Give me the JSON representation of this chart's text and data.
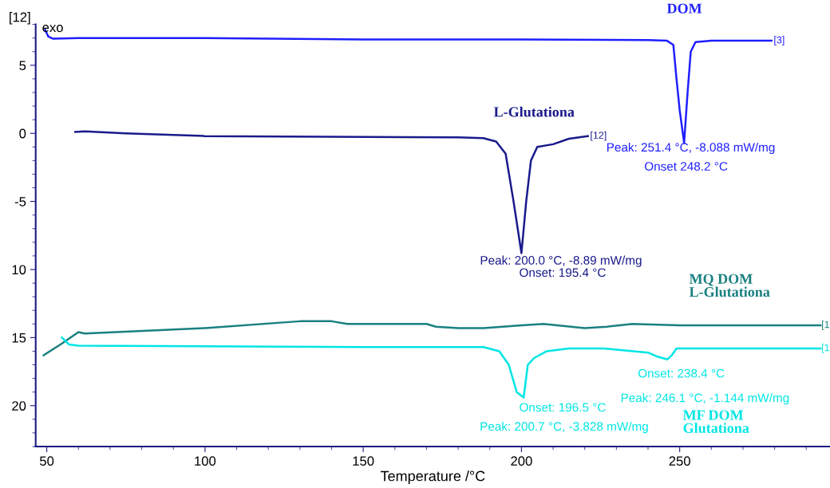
{
  "chart_data": {
    "type": "line",
    "xlabel": "Temperature /°C",
    "xlim": [
      46.5,
      297.5
    ],
    "ylim": [
      -23,
      8
    ],
    "xticks": [
      50,
      100,
      150,
      200,
      250
    ],
    "yticks": [
      {
        "value": -20,
        "label": "20"
      },
      {
        "value": -15,
        "label": "15"
      },
      {
        "value": -10,
        "label": "10"
      },
      -5,
      0,
      5
    ],
    "grid": false,
    "legend": false,
    "marker": "none",
    "line_style": "solid",
    "series": [
      {
        "name": "DOM",
        "color": "#1f1fff",
        "x": [
          49.5,
          50.5,
          52,
          60,
          100,
          150,
          200,
          240,
          246,
          248,
          249,
          250,
          251.4,
          252.5,
          253.5,
          255,
          260,
          279
        ],
        "values": [
          7.6,
          7.1,
          6.95,
          7.0,
          7.0,
          6.9,
          6.9,
          6.85,
          6.8,
          6.5,
          4,
          1.7,
          -0.7,
          3,
          6.0,
          6.7,
          6.8,
          6.8
        ]
      },
      {
        "name": "L-Glutationa",
        "color": "#1a1a8c",
        "x": [
          59,
          62,
          75,
          100,
          180,
          188,
          192,
          195,
          197.5,
          200,
          201.5,
          203,
          205,
          210,
          215,
          221
        ],
        "values": [
          0.1,
          0.15,
          0,
          -0.2,
          -0.3,
          -0.35,
          -0.6,
          -1.5,
          -5,
          -8.8,
          -5,
          -2,
          -1,
          -0.8,
          -0.4,
          -0.2
        ]
      },
      {
        "name": "MQ DOM\nL-Glutationa",
        "color": "#1a8080",
        "x": [
          49,
          55,
          60,
          62,
          100,
          130,
          140,
          145,
          170,
          173,
          180,
          188,
          200,
          207,
          220,
          227,
          235,
          250,
          265,
          294.5
        ],
        "values": [
          -16.3,
          -15.4,
          -14.6,
          -14.7,
          -14.3,
          -13.8,
          -13.8,
          -14.0,
          -14.0,
          -14.2,
          -14.3,
          -14.3,
          -14.1,
          -14.0,
          -14.3,
          -14.2,
          -14.0,
          -14.1,
          -14.1,
          -14.1
        ]
      },
      {
        "name": "MF DOM\nGlutationa",
        "color": "#00e5e5",
        "x": [
          54.8,
          57,
          60,
          150,
          188,
          193,
          196,
          198.5,
          200.7,
          202,
          204,
          208,
          215,
          226,
          240,
          243,
          246.1,
          247.5,
          249,
          260,
          294.5
        ],
        "values": [
          -15.0,
          -15.5,
          -15.6,
          -15.7,
          -15.7,
          -16.0,
          -17,
          -19,
          -19.4,
          -17,
          -16.5,
          -16.0,
          -15.8,
          -15.8,
          -16.1,
          -16.4,
          -16.6,
          -16.3,
          -15.8,
          -15.8,
          -15.8
        ]
      }
    ],
    "ylabel": "[12]",
    "annotations": [
      "exo",
      {
        "text": "[3]",
        "x": 279,
        "y": 6.8
      },
      {
        "text": "[12]",
        "x": 221,
        "y": -0.2
      },
      "[1",
      "[1",
      "Peak: 251.4 °C, -8.088 mW/mg",
      "Onset 248.2 °C",
      "Peak: 200.0 °C, -8.89 mW/mg",
      "Onset: 195.4 °C",
      "Onset: 196.5 °C",
      "Peak: 200.7 °C, -3.828 mW/mg",
      "Onset: 238.4 °C",
      "Peak: 246.1 °C, -1.144 mW/mg"
    ]
  }
}
